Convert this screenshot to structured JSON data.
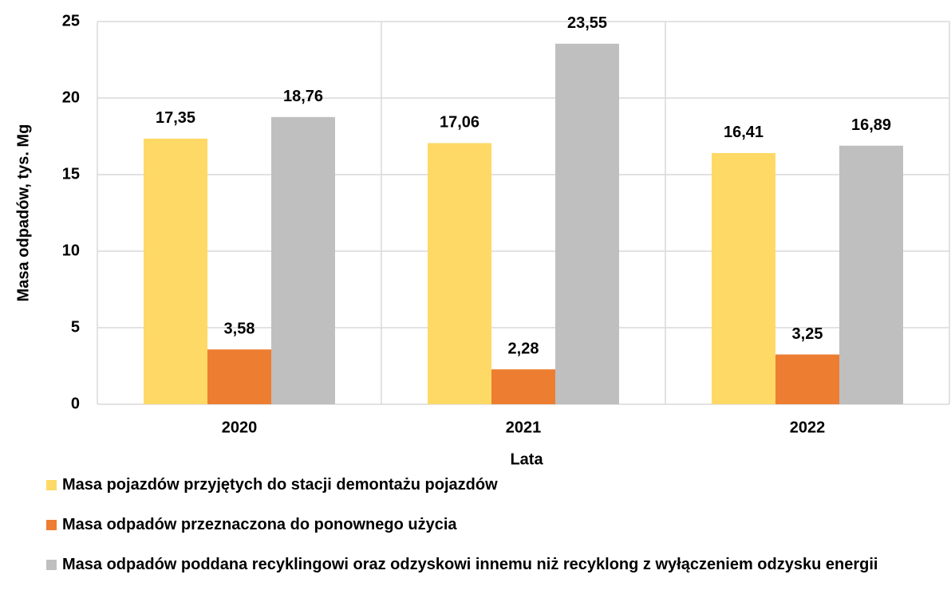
{
  "chart_data": {
    "type": "bar",
    "categories": [
      "2020",
      "2021",
      "2022"
    ],
    "x_label": "Lata",
    "y_label": "Masa odpadów, tys. Mg",
    "ylim": [
      0,
      25
    ],
    "yticks": [
      0,
      5,
      10,
      15,
      20,
      25
    ],
    "grid": true,
    "series": [
      {
        "name": "Masa pojazdów przyjętych do stacji demontażu pojazdów",
        "color": "#FFD966",
        "values": [
          17.35,
          17.06,
          16.41
        ],
        "value_labels": [
          "17,35",
          "17,06",
          "16,41"
        ]
      },
      {
        "name": "Masa odpadów przeznaczona do ponownego użycia",
        "color": "#ED7D31",
        "values": [
          3.58,
          2.28,
          3.25
        ],
        "value_labels": [
          "3,58",
          "2,28",
          "3,25"
        ]
      },
      {
        "name": "Masa odpadów poddana recyklingowi oraz odzyskowi innemu niż recyklong z wyłączeniem odzysku energii",
        "color": "#BFBFBF",
        "values": [
          18.76,
          23.55,
          16.89
        ],
        "value_labels": [
          "18,76",
          "23,55",
          "16,89"
        ]
      }
    ]
  }
}
